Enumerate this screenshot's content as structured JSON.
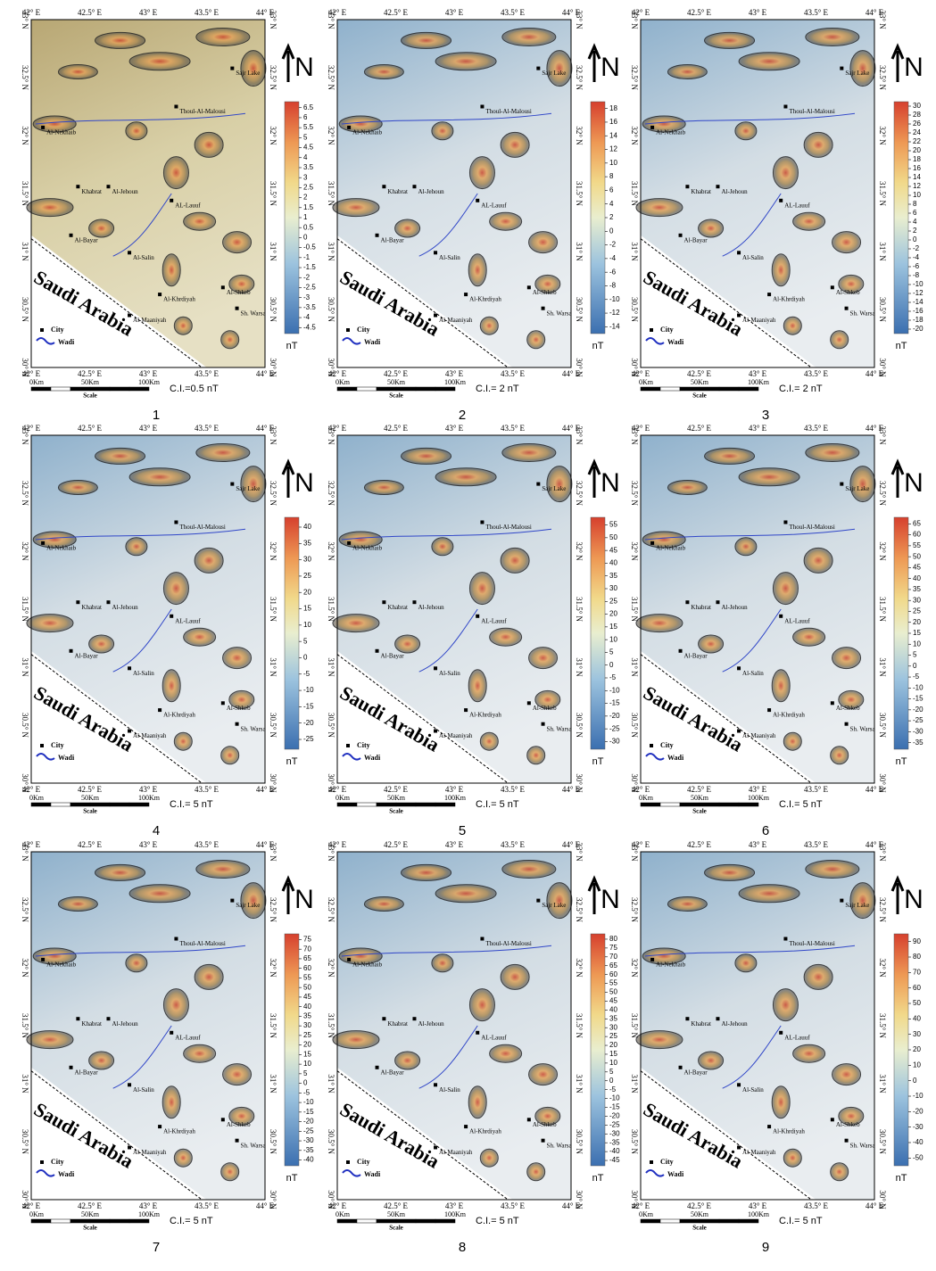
{
  "axes": {
    "lon_labels": [
      "42° E",
      "42.5° E",
      "43° E",
      "43.5° E",
      "44° E"
    ],
    "lat_labels": [
      "33° N",
      "32.5° N",
      "32° N",
      "31.5° N",
      "31° N",
      "30.5° N",
      "30° N"
    ]
  },
  "map_labels": {
    "country": "Saudi Arabia",
    "north": "N",
    "legend_city": "City",
    "legend_wadi": "Wadi",
    "scale_ticks": [
      "0Km",
      "50Km",
      "100Km"
    ],
    "scale": "Scale",
    "unit": "nT"
  },
  "cities": [
    "Al-Nekhaib",
    "Thoul-Al-Malousi",
    "Khabrat",
    "Al-Jehoun",
    "AL-Lauuf",
    "Al-Bayar",
    "Al-Salin",
    "Al-Khrdiyah",
    "Al-Maaniyah",
    "Al-Shkeb",
    "Sh. Warsa",
    "Sajr Lake"
  ],
  "panels": [
    {
      "number": "1",
      "ci": "C.I.=0.5 nT",
      "colorbar_lim": [
        -4.8,
        6.8
      ],
      "colorbar_ticks": [
        6.5,
        6,
        5.5,
        5,
        4.5,
        4,
        3.5,
        3,
        2.5,
        2,
        1.5,
        1,
        0.5,
        0,
        -0.5,
        -1,
        -1.5,
        -2,
        -2.5,
        -3,
        -3.5,
        -4,
        -4.5
      ]
    },
    {
      "number": "2",
      "ci": "C.I.= 2 nT",
      "colorbar_lim": [
        -15,
        19
      ],
      "colorbar_ticks": [
        18,
        16,
        14,
        12,
        10,
        8,
        6,
        4,
        2,
        0,
        -2,
        -4,
        -6,
        -8,
        -10,
        -12,
        -14
      ]
    },
    {
      "number": "3",
      "ci": "C.I.= 2 nT",
      "colorbar_lim": [
        -21,
        31
      ],
      "colorbar_ticks": [
        30,
        28,
        26,
        24,
        22,
        20,
        18,
        16,
        14,
        12,
        10,
        8,
        6,
        4,
        2,
        0,
        -2,
        -4,
        -6,
        -8,
        -10,
        -12,
        -14,
        -16,
        -18,
        -20
      ]
    },
    {
      "number": "4",
      "ci": "C.I.= 5 nT",
      "colorbar_lim": [
        -28,
        43
      ],
      "colorbar_ticks": [
        40,
        35,
        30,
        25,
        20,
        15,
        10,
        5,
        0,
        -5,
        -10,
        -15,
        -20,
        -25
      ]
    },
    {
      "number": "5",
      "ci": "C.I.= 5 nT",
      "colorbar_lim": [
        -33,
        58
      ],
      "colorbar_ticks": [
        55,
        50,
        45,
        40,
        35,
        30,
        25,
        20,
        15,
        10,
        5,
        0,
        -5,
        -10,
        -15,
        -20,
        -25,
        -30
      ]
    },
    {
      "number": "6",
      "ci": "C.I.= 5 nT",
      "colorbar_lim": [
        -38,
        68
      ],
      "colorbar_ticks": [
        65,
        60,
        55,
        50,
        45,
        40,
        35,
        30,
        25,
        20,
        15,
        10,
        5,
        0,
        -5,
        -10,
        -15,
        -20,
        -25,
        -30,
        -35
      ]
    },
    {
      "number": "7",
      "ci": "C.I.= 5 nT",
      "colorbar_lim": [
        -43,
        78
      ],
      "colorbar_ticks": [
        75,
        70,
        65,
        60,
        55,
        50,
        45,
        40,
        35,
        30,
        25,
        20,
        15,
        10,
        5,
        0,
        -5,
        -10,
        -15,
        -20,
        -25,
        -30,
        -35,
        -40
      ]
    },
    {
      "number": "8",
      "ci": "C.I.= 5 nT",
      "colorbar_lim": [
        -48,
        83
      ],
      "colorbar_ticks": [
        80,
        75,
        70,
        65,
        60,
        55,
        50,
        45,
        40,
        35,
        30,
        25,
        20,
        15,
        10,
        5,
        0,
        -5,
        -10,
        -15,
        -20,
        -25,
        -30,
        -35,
        -40,
        -45
      ]
    },
    {
      "number": "9",
      "ci": "C.I.= 5 nT",
      "colorbar_lim": [
        -55,
        95
      ],
      "colorbar_ticks": [
        90,
        80,
        70,
        60,
        50,
        40,
        30,
        20,
        10,
        0,
        -10,
        -20,
        -30,
        -40,
        -50
      ]
    }
  ]
}
